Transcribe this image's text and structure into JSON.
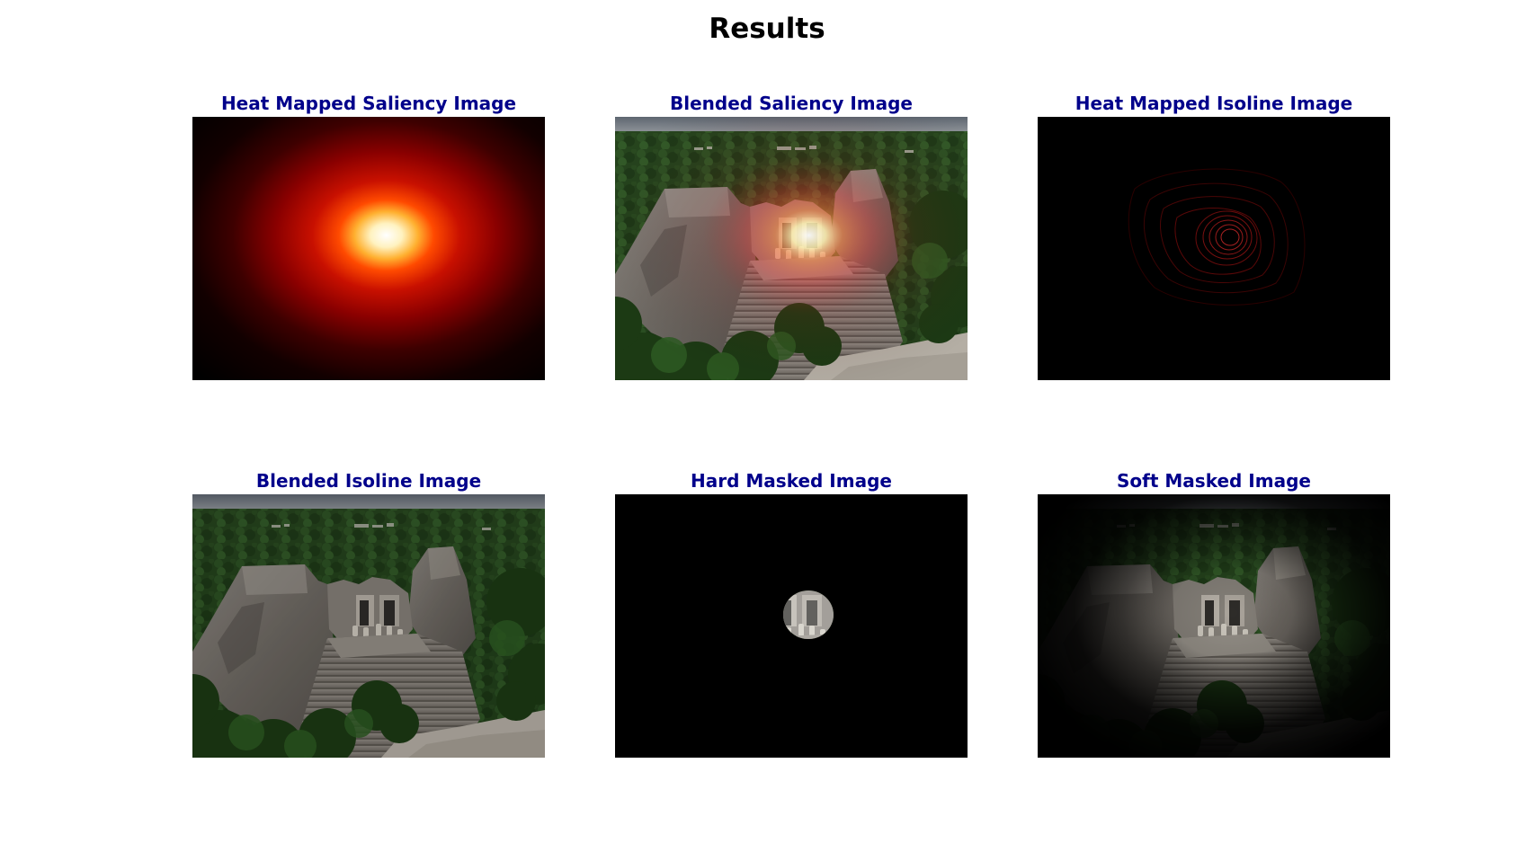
{
  "title": "Results",
  "title_color": "#000000",
  "panel_title_color": "#00008b",
  "panels": [
    {
      "title": "Heat Mapped Saliency Image"
    },
    {
      "title": "Blended Saliency Image"
    },
    {
      "title": "Heat Mapped Isoline Image"
    },
    {
      "title": "Blended Isoline Image"
    },
    {
      "title": "Hard Masked Image"
    },
    {
      "title": "Soft Masked Image"
    }
  ]
}
